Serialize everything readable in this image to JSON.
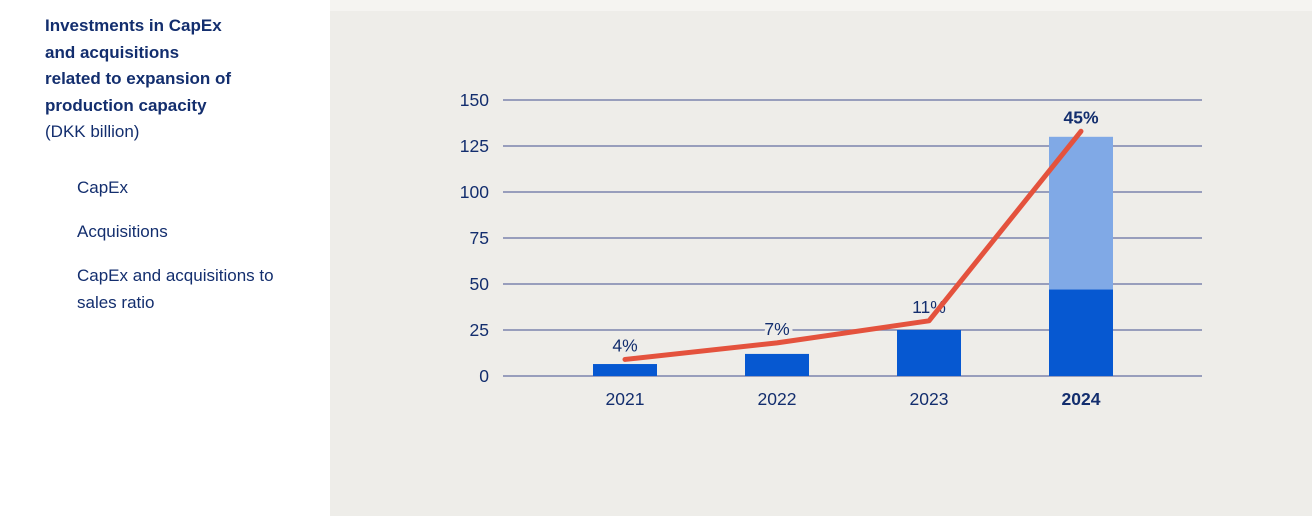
{
  "panel": {
    "title_lines": [
      "Investments in CapEx",
      "and acquisitions",
      "related to expansion of",
      "production capacity"
    ],
    "subtitle": "(DKK billion)",
    "legend": {
      "items": [
        {
          "label": "CapEx",
          "swatch": "circle",
          "color": "#0658D1"
        },
        {
          "label": "Acquisitions",
          "swatch": "circle",
          "color": "#80A9E6"
        },
        {
          "label": "CapEx and acquisitions to sales ratio",
          "swatch": "dash",
          "color": "#E4523D"
        }
      ]
    }
  },
  "colors": {
    "navy_text": "#132E6E",
    "capex_blue": "#0658D1",
    "acquisitions_blue": "#80A9E6",
    "ratio_red": "#E4523D",
    "gridline": "#7B84AD",
    "chart_panel_bg": "#EEEDE9",
    "top_strip_bg": "#F5F4F1",
    "info_panel_bg": "#FFFFFF"
  },
  "chart_data": {
    "type": "bar",
    "subtype": "stacked-bar-with-line",
    "title": "Investments in CapEx and acquisitions related to expansion of production capacity",
    "unit": "DKK billion",
    "categories": [
      "2021",
      "2022",
      "2023",
      "2024"
    ],
    "categories_bold": [
      false,
      false,
      false,
      true
    ],
    "series": [
      {
        "name": "CapEx",
        "type": "bar",
        "color": "#0658D1",
        "values": [
          6.5,
          12,
          25,
          47
        ]
      },
      {
        "name": "Acquisitions",
        "type": "bar",
        "color": "#80A9E6",
        "values": [
          0,
          0,
          0,
          83
        ]
      },
      {
        "name": "CapEx and acquisitions to sales ratio",
        "type": "line",
        "color": "#E4523D",
        "labels": [
          "4%",
          "7%",
          "11%",
          "45%"
        ],
        "labels_bold": [
          false,
          false,
          false,
          true
        ],
        "ratio_percent": [
          4,
          7,
          11,
          45
        ],
        "plotted_values": [
          9,
          18,
          30,
          133
        ]
      }
    ],
    "y_axis": {
      "min": 0,
      "max": 150,
      "ticks": [
        150,
        125,
        100,
        75,
        50,
        25,
        0
      ],
      "grid": true
    },
    "legend_position": "left"
  }
}
